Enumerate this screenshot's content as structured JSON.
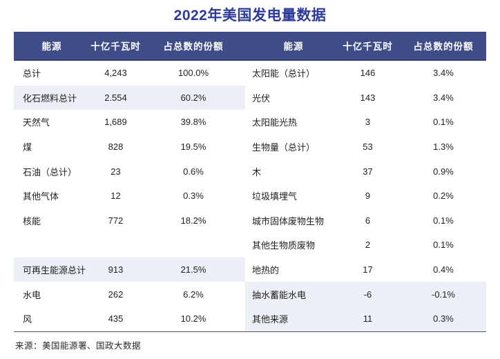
{
  "title": "2022年美国发电量数据",
  "source": "来源：美国能源署、国政大数据",
  "colors": {
    "header_bg": "#3E4C87",
    "highlight_bg": "#EDEFF7",
    "title_color": "#2B3A9C"
  },
  "columns": [
    "能源",
    "十亿千瓦时",
    "占总数的份额"
  ],
  "left_rows": [
    {
      "name": "总计",
      "value": "4,243",
      "share": "100.0%",
      "highlight": false
    },
    {
      "name": "化石燃料总计",
      "value": "2.554",
      "share": "60.2%",
      "highlight": true
    },
    {
      "name": "天然气",
      "value": "1,689",
      "share": "39.8%",
      "highlight": false
    },
    {
      "name": "煤",
      "value": "828",
      "share": "19.5%",
      "highlight": false
    },
    {
      "name": "石油（总计）",
      "value": "23",
      "share": "0.6%",
      "highlight": false
    },
    {
      "name": "其他气体",
      "value": "12",
      "share": "0.3%",
      "highlight": false
    },
    {
      "name": "核能",
      "value": "772",
      "share": "18.2%",
      "highlight": false
    },
    {
      "name": "",
      "value": "",
      "share": "",
      "highlight": false
    },
    {
      "name": "可再生能源总计",
      "value": "913",
      "share": "21.5%",
      "highlight": true
    },
    {
      "name": "水电",
      "value": "262",
      "share": "6.2%",
      "highlight": false
    },
    {
      "name": "风",
      "value": "435",
      "share": "10.2%",
      "highlight": false
    }
  ],
  "right_rows": [
    {
      "name": "太阳能（总计）",
      "value": "146",
      "share": "3.4%",
      "highlight": false
    },
    {
      "name": "光伏",
      "value": "143",
      "share": "3.4%",
      "highlight": false
    },
    {
      "name": "太阳能光热",
      "value": "3",
      "share": "0.1%",
      "highlight": false
    },
    {
      "name": "生物量（总计）",
      "value": "53",
      "share": "1.3%",
      "highlight": false
    },
    {
      "name": "木",
      "value": "37",
      "share": "0.9%",
      "highlight": false
    },
    {
      "name": "垃圾填埋气",
      "value": "9",
      "share": "0.2%",
      "highlight": false
    },
    {
      "name": "城市固体废物生物",
      "value": "6",
      "share": "0.1%",
      "highlight": false
    },
    {
      "name": "其他生物质废物",
      "value": "2",
      "share": "0.1%",
      "highlight": false
    },
    {
      "name": "地热的",
      "value": "17",
      "share": "0.4%",
      "highlight": false
    },
    {
      "name": "抽水蓄能水电",
      "value": "-6",
      "share": "-0.1%",
      "highlight": true
    },
    {
      "name": "其他来源",
      "value": "11",
      "share": "0.3%",
      "highlight": true
    }
  ]
}
